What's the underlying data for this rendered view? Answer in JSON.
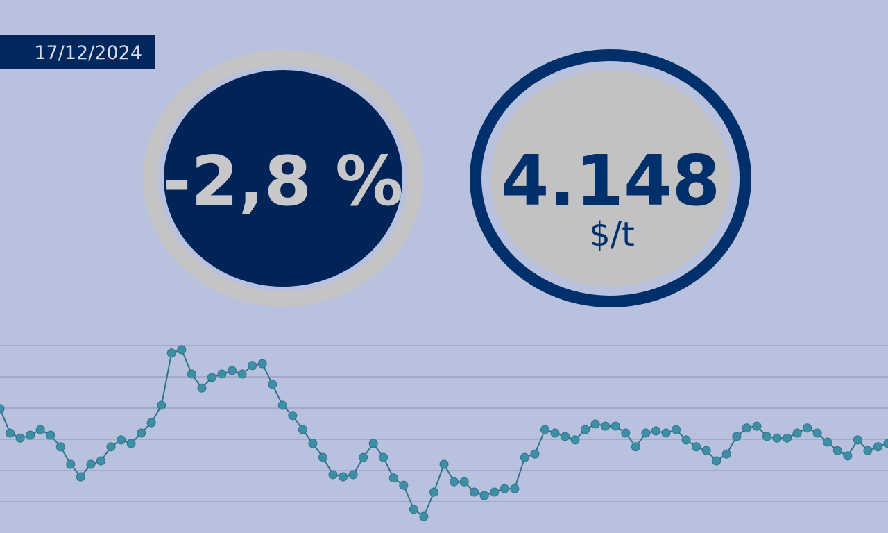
{
  "date": "17/12/2024",
  "change": "-2,8 %",
  "price": "4.148",
  "unit": "$/t",
  "chart_data": {
    "type": "line",
    "color": "#3d8fa6",
    "line_color": "#2f7289",
    "values": [
      2.98,
      2.2,
      2.04,
      2.13,
      2.31,
      2.13,
      1.76,
      1.2,
      0.8,
      1.2,
      1.31,
      1.76,
      1.98,
      1.87,
      2.2,
      2.53,
      3.09,
      4.76,
      4.87,
      4.09,
      3.64,
      3.98,
      4.09,
      4.2,
      4.09,
      4.36,
      4.42,
      3.76,
      3.09,
      2.76,
      2.31,
      1.87,
      1.42,
      0.87,
      0.8,
      0.87,
      1.42,
      1.87,
      1.42,
      0.76,
      0.53,
      -0.24,
      -0.47,
      0.31,
      1.2,
      0.64,
      0.64,
      0.31,
      0.2,
      0.31,
      0.42,
      0.42,
      1.42,
      1.53,
      2.31,
      2.2,
      2.09,
      1.98,
      2.31,
      2.49,
      2.42,
      2.42,
      2.2,
      1.76,
      2.2,
      2.27,
      2.2,
      2.31,
      1.98,
      1.76,
      1.64,
      1.31,
      1.53,
      2.09,
      2.36,
      2.42,
      2.09,
      2.04,
      2.04,
      2.2,
      2.36,
      2.2,
      1.91,
      1.64,
      1.47,
      1.98,
      1.64,
      1.76,
      1.87
    ],
    "ylim": [
      -1,
      5.4
    ],
    "yticks": [
      0,
      1,
      2,
      3,
      4,
      5
    ],
    "grid": true
  }
}
